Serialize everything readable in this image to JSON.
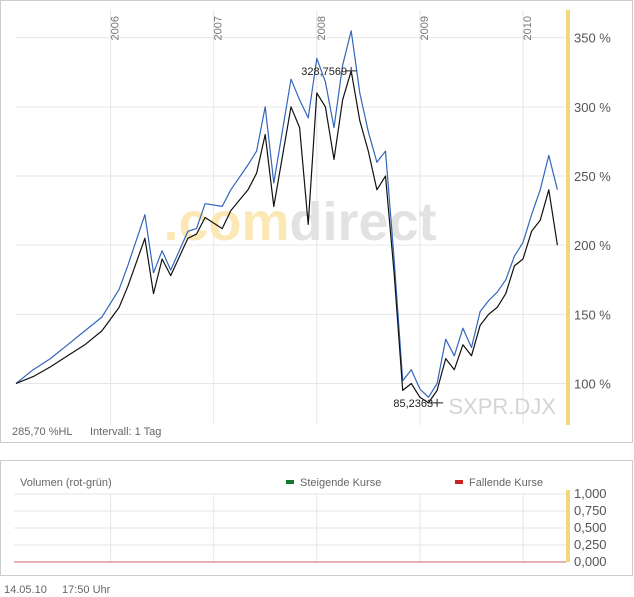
{
  "chart_data": [
    {
      "type": "line",
      "symbol": "SXPR.DJX",
      "watermark": ".comdirect",
      "x_labels": [
        "2006",
        "2007",
        "2008",
        "2009",
        "2010"
      ],
      "y_ticks": [
        100,
        150,
        200,
        250,
        300,
        350
      ],
      "y_tick_suffix": " %",
      "ylim": [
        70,
        370
      ],
      "grid": true,
      "annotations": [
        {
          "label": "328,7569",
          "x": "2008-05",
          "y": 326
        },
        {
          "label": "85,2363",
          "x": "2009-03",
          "y": 86
        }
      ],
      "footer": {
        "range": "285,70 %HL",
        "interval": "Intervall: 1 Tag"
      },
      "series": [
        {
          "color": "#3366bb",
          "x": [
            "2005-02",
            "2005-04",
            "2005-06",
            "2005-08",
            "2005-10",
            "2005-12",
            "2006-02",
            "2006-03",
            "2006-05",
            "2006-06",
            "2006-07",
            "2006-08",
            "2006-10",
            "2006-11",
            "2006-12",
            "2007-02",
            "2007-03",
            "2007-05",
            "2007-06",
            "2007-07",
            "2007-08",
            "2007-10",
            "2007-11",
            "2007-12",
            "2008-01",
            "2008-02",
            "2008-03",
            "2008-04",
            "2008-05",
            "2008-06",
            "2008-07",
            "2008-08",
            "2008-09",
            "2008-10",
            "2008-11",
            "2008-12",
            "2009-01",
            "2009-02",
            "2009-03",
            "2009-04",
            "2009-05",
            "2009-06",
            "2009-07",
            "2009-08",
            "2009-09",
            "2009-10",
            "2009-11",
            "2009-12",
            "2010-01",
            "2010-02",
            "2010-03",
            "2010-04",
            "2010-05"
          ],
          "values": [
            100,
            110,
            118,
            128,
            138,
            148,
            168,
            185,
            222,
            180,
            196,
            182,
            210,
            212,
            230,
            228,
            240,
            258,
            268,
            300,
            245,
            320,
            305,
            292,
            335,
            318,
            285,
            330,
            355,
            310,
            282,
            260,
            268,
            190,
            102,
            110,
            96,
            90,
            100,
            132,
            120,
            140,
            126,
            152,
            160,
            166,
            175,
            192,
            202,
            222,
            240,
            265,
            240
          ]
        },
        {
          "color": "#111111",
          "x": [
            "2005-02",
            "2005-04",
            "2005-06",
            "2005-08",
            "2005-10",
            "2005-12",
            "2006-02",
            "2006-03",
            "2006-05",
            "2006-06",
            "2006-07",
            "2006-08",
            "2006-10",
            "2006-11",
            "2006-12",
            "2007-02",
            "2007-03",
            "2007-05",
            "2007-06",
            "2007-07",
            "2007-08",
            "2007-10",
            "2007-11",
            "2007-12",
            "2008-01",
            "2008-02",
            "2008-03",
            "2008-04",
            "2008-05",
            "2008-06",
            "2008-07",
            "2008-08",
            "2008-09",
            "2008-10",
            "2008-11",
            "2008-12",
            "2009-01",
            "2009-02",
            "2009-03",
            "2009-04",
            "2009-05",
            "2009-06",
            "2009-07",
            "2009-08",
            "2009-09",
            "2009-10",
            "2009-11",
            "2009-12",
            "2010-01",
            "2010-02",
            "2010-03",
            "2010-04",
            "2010-05"
          ],
          "values": [
            100,
            105,
            112,
            120,
            128,
            138,
            155,
            170,
            205,
            165,
            190,
            178,
            205,
            208,
            220,
            212,
            225,
            240,
            252,
            280,
            228,
            300,
            285,
            215,
            310,
            300,
            262,
            305,
            326,
            290,
            268,
            240,
            250,
            180,
            95,
            100,
            90,
            86,
            95,
            118,
            110,
            128,
            120,
            142,
            150,
            155,
            165,
            185,
            190,
            210,
            218,
            240,
            200
          ]
        }
      ]
    },
    {
      "type": "bar",
      "title": "Volumen (rot-grün)",
      "legend": [
        {
          "label": "Steigende Kurse",
          "color": "#117733"
        },
        {
          "label": "Fallende Kurse",
          "color": "#cc2222"
        }
      ],
      "y_ticks": [
        "1,000",
        "0,750",
        "0,500",
        "0,250",
        "0,000"
      ],
      "ylim": [
        0,
        1
      ],
      "grid": true,
      "values": []
    }
  ],
  "timestamp": {
    "date": "14.05.10",
    "time": "17:50 Uhr"
  },
  "colors": {
    "frame": "#cccccc",
    "grid": "#e6e6e6",
    "highlight_bar": "#f5d678"
  }
}
